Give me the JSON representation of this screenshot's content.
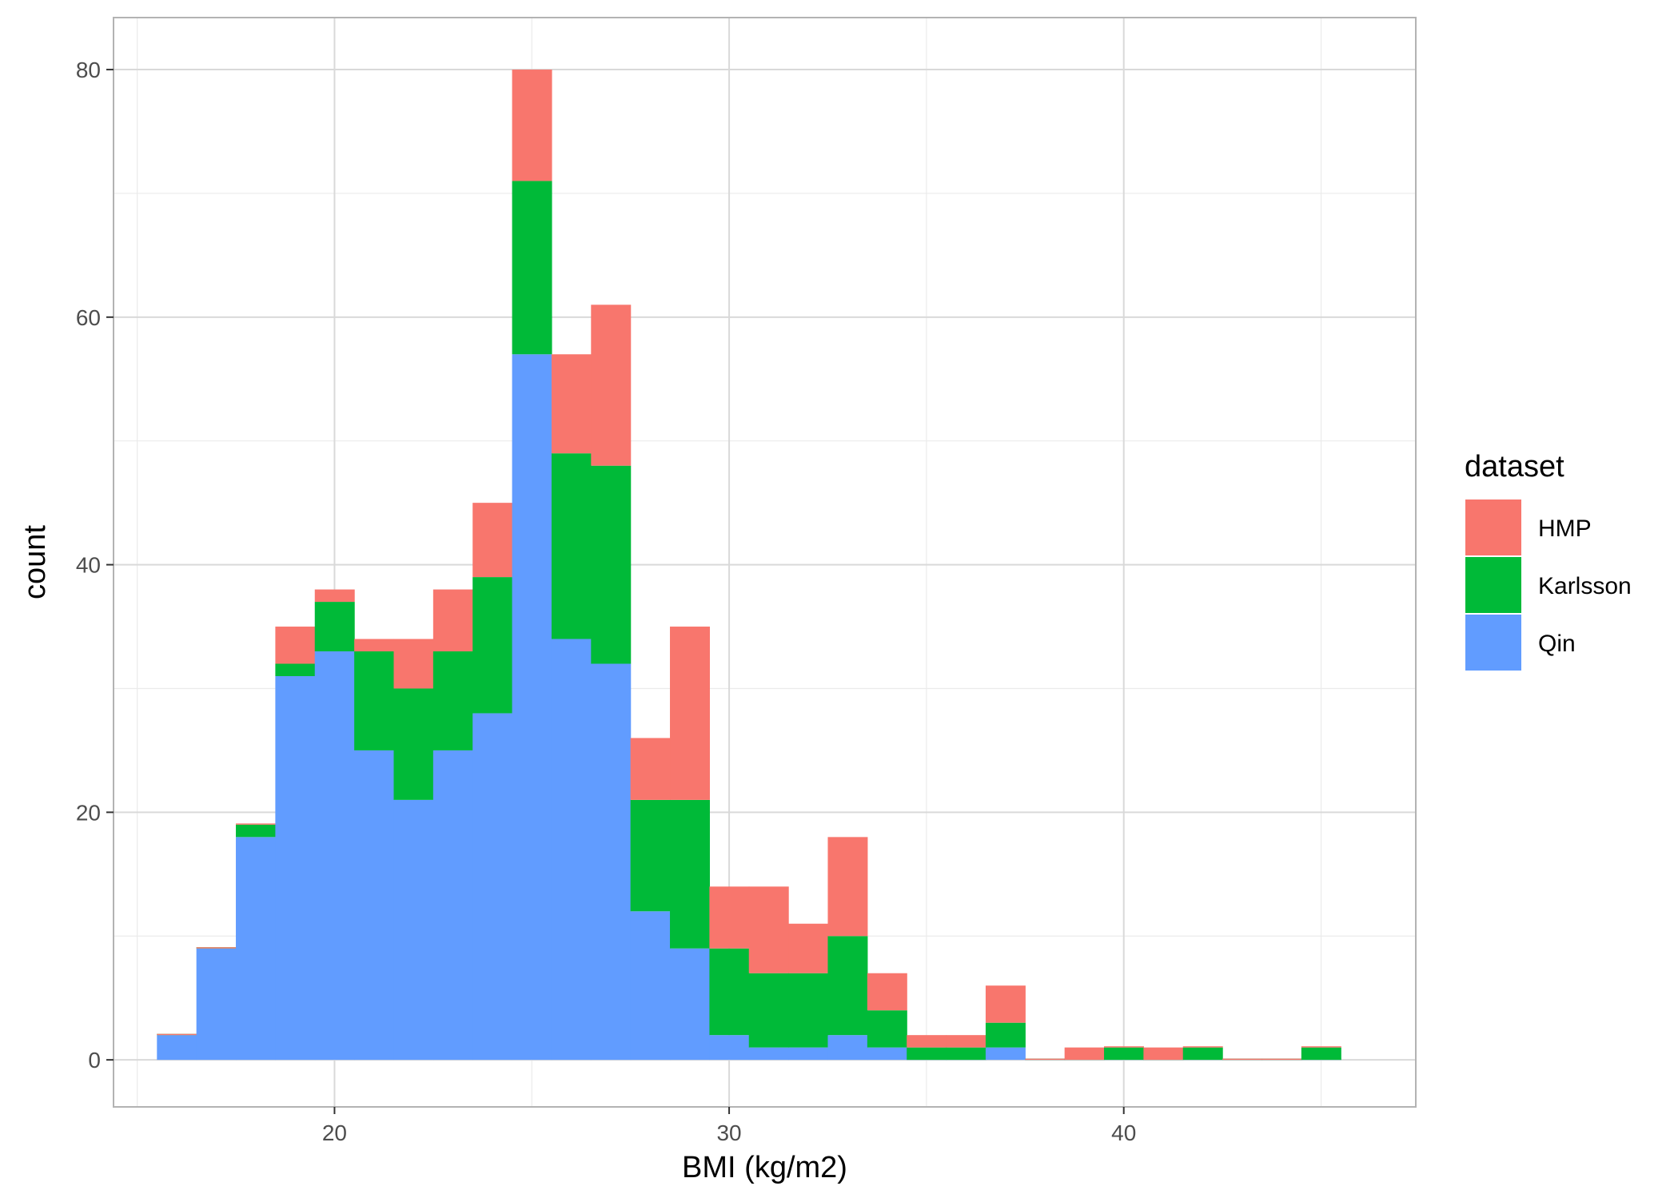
{
  "chart_data": {
    "type": "bar",
    "subtype": "stacked-histogram",
    "title": "",
    "xlabel": "BMI (kg/m2)",
    "ylabel": "count",
    "xlim": [
      14.4,
      47.4
    ],
    "ylim": [
      -3.8,
      84.2
    ],
    "x_ticks": [
      20,
      30,
      40
    ],
    "y_ticks": [
      0,
      20,
      40,
      60,
      80
    ],
    "grid": true,
    "legend": {
      "title": "dataset",
      "position": "right"
    },
    "bin_width": 1,
    "bin_starts": [
      15.5,
      16.5,
      17.5,
      18.5,
      19.5,
      20.5,
      21.5,
      22.5,
      23.5,
      24.5,
      25.5,
      26.5,
      27.5,
      28.5,
      29.5,
      30.5,
      31.5,
      32.5,
      33.5,
      34.5,
      35.5,
      36.5,
      37.5,
      38.5,
      39.5,
      40.5,
      41.5,
      42.5,
      43.5,
      44.5
    ],
    "stack_order": [
      "Qin",
      "Karlsson",
      "HMP"
    ],
    "series": [
      {
        "name": "HMP",
        "color": "#F8766D",
        "values": [
          0,
          0,
          0,
          3,
          1,
          1,
          4,
          5,
          6,
          9,
          8,
          13,
          5,
          14,
          5,
          7,
          4,
          8,
          3,
          1,
          1,
          3,
          0,
          1,
          0,
          1,
          0,
          0,
          0,
          0
        ]
      },
      {
        "name": "Karlsson",
        "color": "#00BA38",
        "values": [
          0,
          0,
          1,
          1,
          4,
          8,
          9,
          8,
          11,
          14,
          15,
          16,
          9,
          12,
          7,
          6,
          6,
          8,
          3,
          1,
          1,
          2,
          0,
          0,
          1,
          0,
          1,
          0,
          0,
          1
        ]
      },
      {
        "name": "Qin",
        "color": "#619CFF",
        "values": [
          2,
          9,
          18,
          31,
          33,
          25,
          21,
          25,
          28,
          57,
          34,
          32,
          12,
          9,
          2,
          1,
          1,
          2,
          1,
          0,
          0,
          1,
          0,
          0,
          0,
          0,
          0,
          0,
          0,
          0
        ]
      }
    ]
  }
}
